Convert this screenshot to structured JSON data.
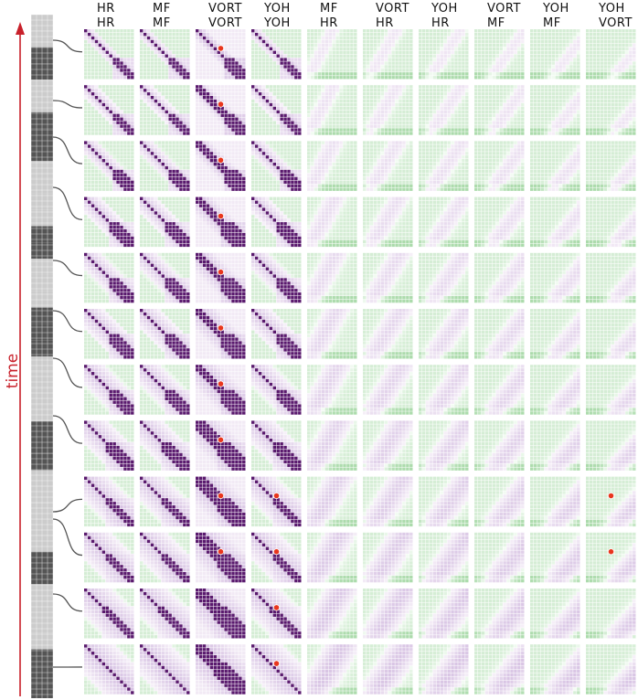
{
  "axis_label": "time",
  "column_headers": [
    {
      "top": "HR",
      "bottom": "HR"
    },
    {
      "top": "MF",
      "bottom": "MF"
    },
    {
      "top": "VORT",
      "bottom": "VORT"
    },
    {
      "top": "YOH",
      "bottom": "YOH"
    },
    {
      "top": "MF",
      "bottom": "HR"
    },
    {
      "top": "VORT",
      "bottom": "HR"
    },
    {
      "top": "YOH",
      "bottom": "HR"
    },
    {
      "top": "VORT",
      "bottom": "MF"
    },
    {
      "top": "YOH",
      "bottom": "MF"
    },
    {
      "top": "YOH",
      "bottom": "VORT"
    }
  ],
  "row_count": 12,
  "colors": {
    "time_arrow": "#c8202a",
    "purple_strong": "#5a1a6e",
    "purple_light": "#d7c2e3",
    "green_light": "#cfeccf",
    "green_strong": "#7fc77f",
    "highlight": "#e8361e",
    "strip_dark": "#555555",
    "strip_light": "#cccccc",
    "connector": "#555555"
  },
  "strip_pattern": [
    "light",
    "light",
    "dark",
    "dark",
    "light",
    "light",
    "dark",
    "dark",
    "dark",
    "light",
    "light",
    "light",
    "light",
    "dark",
    "dark",
    "light",
    "light",
    "light",
    "dark",
    "dark",
    "dark",
    "light",
    "light",
    "light",
    "light",
    "dark",
    "dark",
    "dark",
    "light",
    "light",
    "light",
    "light",
    "light",
    "dark",
    "dark",
    "light",
    "light",
    "light",
    "light",
    "dark",
    "dark",
    "dark"
  ],
  "highlights": [
    {
      "row": 0,
      "col": 2
    },
    {
      "row": 1,
      "col": 2
    },
    {
      "row": 2,
      "col": 2
    },
    {
      "row": 3,
      "col": 2
    },
    {
      "row": 4,
      "col": 2
    },
    {
      "row": 5,
      "col": 2
    },
    {
      "row": 6,
      "col": 2
    },
    {
      "row": 7,
      "col": 2
    },
    {
      "row": 8,
      "col": 2
    },
    {
      "row": 9,
      "col": 2
    },
    {
      "row": 8,
      "col": 3
    },
    {
      "row": 9,
      "col": 3
    },
    {
      "row": 10,
      "col": 3
    },
    {
      "row": 11,
      "col": 3
    },
    {
      "row": 8,
      "col": 9
    },
    {
      "row": 9,
      "col": 9
    }
  ]
}
